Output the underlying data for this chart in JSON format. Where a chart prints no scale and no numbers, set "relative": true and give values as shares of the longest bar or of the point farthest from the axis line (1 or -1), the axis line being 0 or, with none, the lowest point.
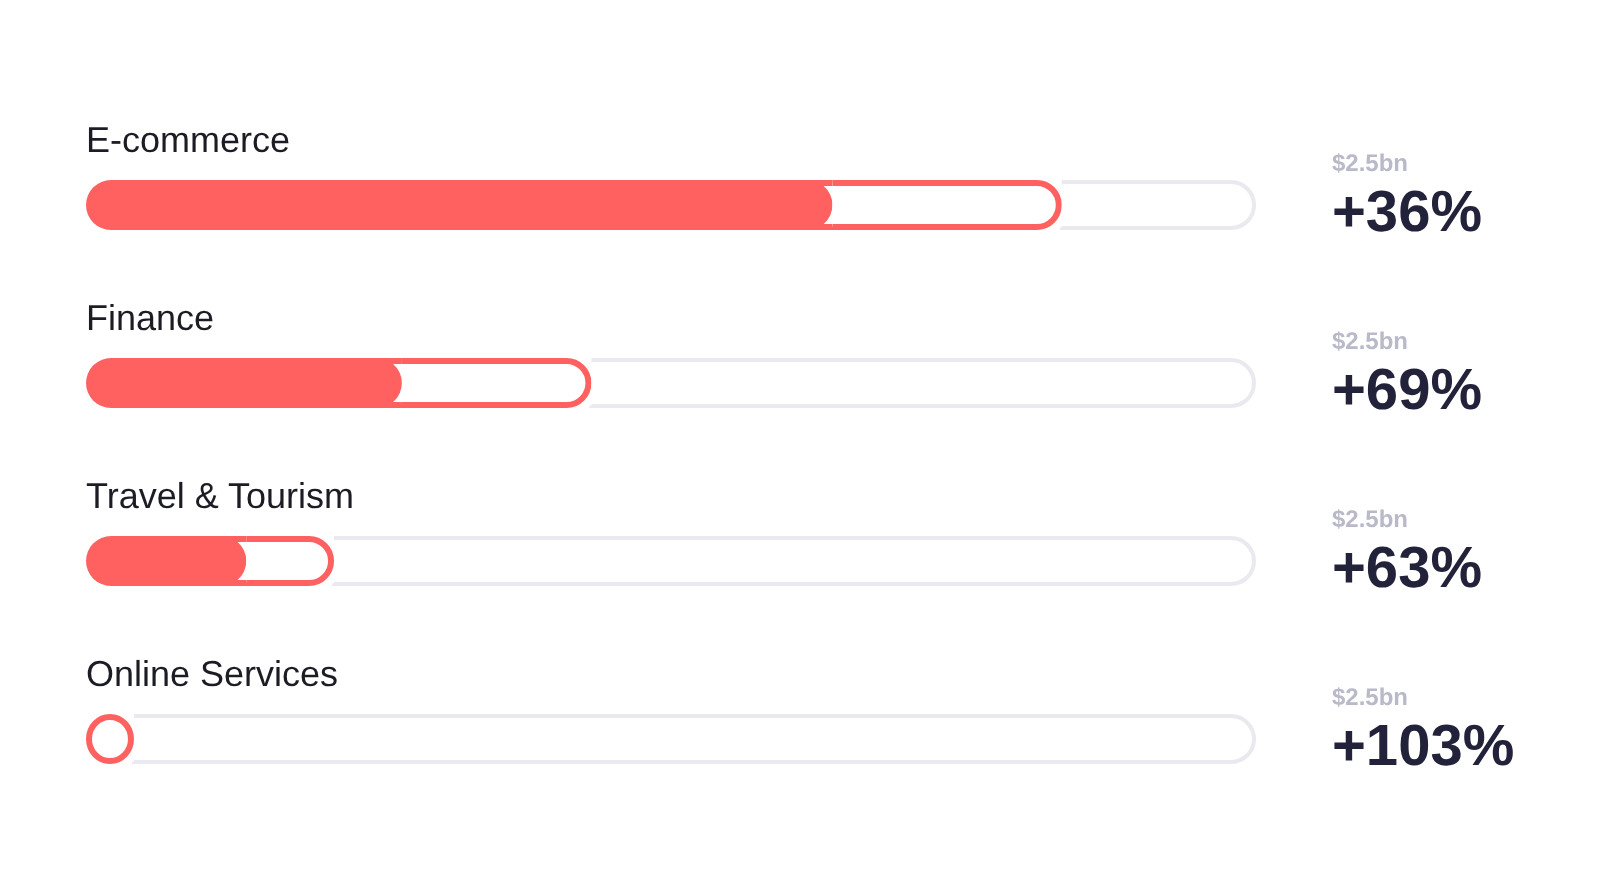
{
  "chart_data": {
    "type": "bar",
    "orientation": "horizontal",
    "relative": true,
    "stacked": true,
    "categories": [
      "E-commerce",
      "Finance",
      "Travel & Tourism",
      "Online Services"
    ],
    "series": [
      {
        "color": "#ff6161",
        "values": [
          0.638,
          0.27,
          0.137,
          0
        ]
      },
      {
        "color": "#ff6161",
        "values": [
          0.196,
          0.162,
          0.075,
          0.041
        ]
      },
      {
        "color": "#e9e9ef",
        "values": [
          0.166,
          0.568,
          0.788,
          0.959
        ]
      }
    ],
    "annotations": [
      "$2.5bn",
      "+36%",
      "$2.5bn",
      "+69%",
      "$2.5bn",
      "+63%",
      "$2.5bn",
      "+103%"
    ]
  }
}
